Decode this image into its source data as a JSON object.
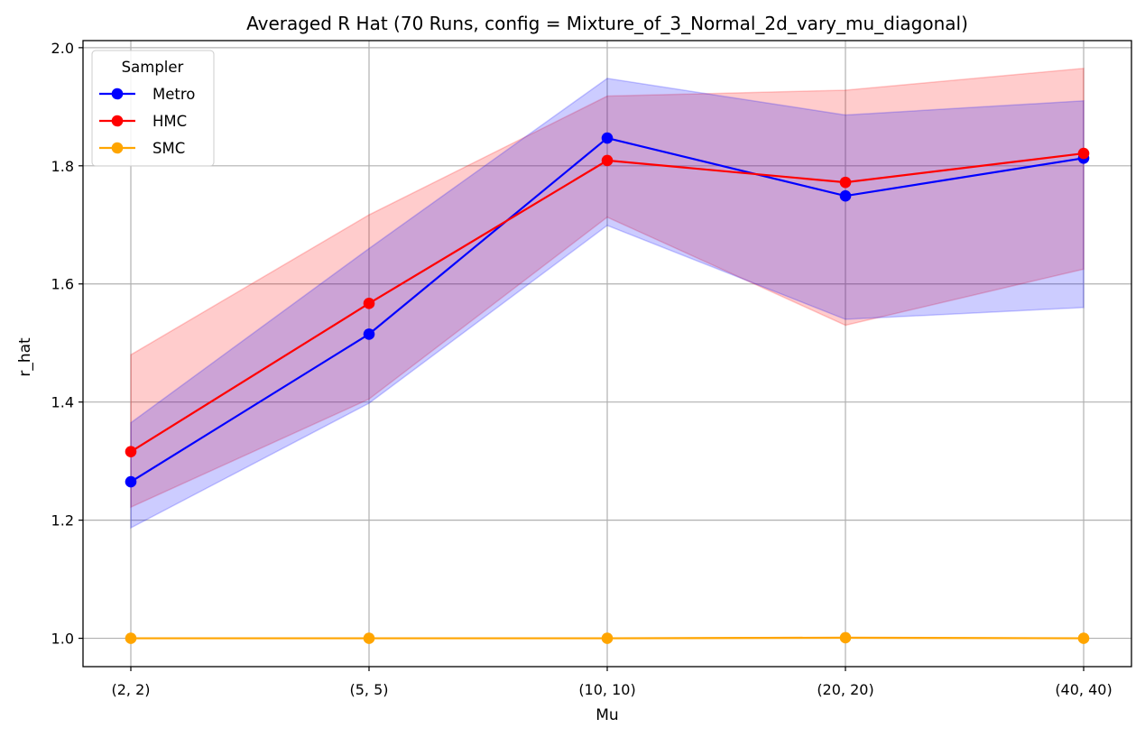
{
  "chart_data": {
    "type": "line",
    "title": "Averaged R Hat (70 Runs, config = Mixture_of_3_Normal_2d_vary_mu_diagonal)",
    "xlabel": "Mu",
    "ylabel": "r_hat",
    "categories": [
      "(2, 2)",
      "(5, 5)",
      "(10, 10)",
      "(20, 20)",
      "(40, 40)"
    ],
    "ylim": [
      0.952,
      2.012
    ],
    "yticks": [
      1.0,
      1.2,
      1.4,
      1.6,
      1.8,
      2.0
    ],
    "ytick_labels": [
      "1.0",
      "1.2",
      "1.4",
      "1.6",
      "1.8",
      "2.0"
    ],
    "grid": true,
    "legend": {
      "title": "Sampler",
      "placement": "top-left"
    },
    "series": [
      {
        "name": "Metro",
        "color": "#0000ff",
        "values": [
          1.265,
          1.515,
          1.847,
          1.749,
          1.813
        ],
        "band_lower": [
          1.187,
          1.398,
          1.699,
          1.54,
          1.56
        ],
        "band_upper": [
          1.365,
          1.66,
          1.948,
          1.886,
          1.91
        ]
      },
      {
        "name": "HMC",
        "color": "#ff0000",
        "values": [
          1.316,
          1.567,
          1.809,
          1.772,
          1.821
        ],
        "band_lower": [
          1.222,
          1.405,
          1.713,
          1.53,
          1.625
        ],
        "band_upper": [
          1.48,
          1.717,
          1.918,
          1.928,
          1.965
        ]
      },
      {
        "name": "SMC",
        "color": "#ffa500",
        "values": [
          1.0,
          1.0,
          1.0,
          1.001,
          1.0
        ],
        "band_lower": [
          1.0,
          1.0,
          1.0,
          1.0,
          1.0
        ],
        "band_upper": [
          1.0,
          1.0,
          1.0,
          1.002,
          1.0
        ]
      }
    ]
  }
}
